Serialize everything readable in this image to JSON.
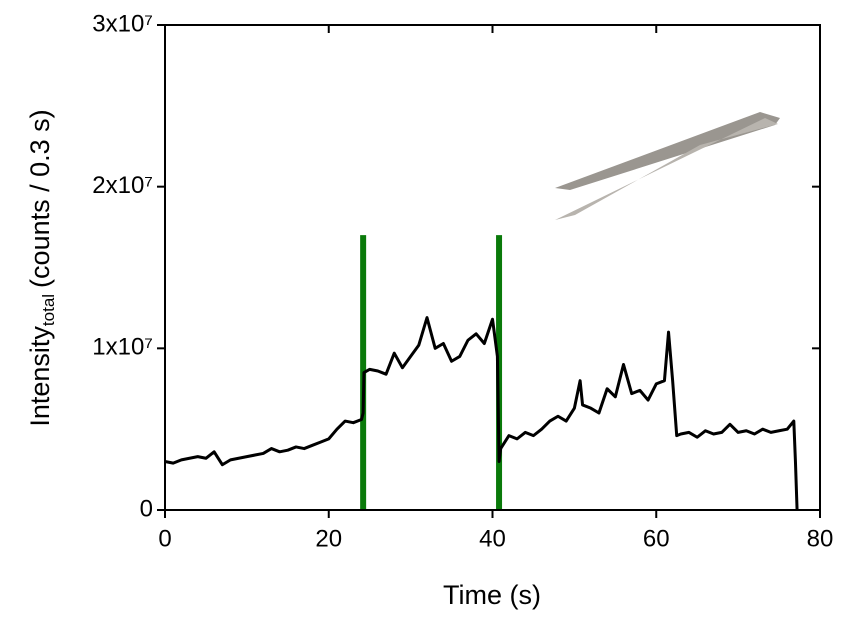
{
  "chart_data": {
    "type": "line",
    "xlabel": "Time (s)",
    "ylabel": {
      "main": "Intensity",
      "sub": "total",
      "rest": "(counts / 0.3 s)"
    },
    "xlim": [
      0,
      80
    ],
    "xticks": [
      0,
      20,
      40,
      60,
      80
    ],
    "ylim": [
      0,
      30000000
    ],
    "yticks": [
      0,
      {
        "value": 10000000,
        "label": "1x10⁷"
      },
      {
        "value": 20000000,
        "label": "2x10⁷"
      },
      {
        "value": 30000000,
        "label": "3x10⁷"
      }
    ],
    "series": [
      {
        "color": "#000000",
        "x": [
          0,
          1,
          2,
          3,
          4,
          5,
          6,
          7,
          8,
          9,
          10,
          11,
          12,
          13,
          14,
          15,
          16,
          17,
          18,
          19,
          20,
          21,
          22,
          23,
          24,
          24.2,
          24.3,
          25,
          26,
          27,
          28,
          29,
          30,
          31,
          32,
          33,
          34,
          35,
          36,
          37,
          38,
          39,
          40,
          40.6,
          40.8,
          41,
          42,
          43,
          44,
          45,
          46,
          47,
          48,
          49,
          50,
          50.7,
          51,
          52,
          53,
          54,
          55,
          56,
          57,
          58,
          59,
          60,
          61,
          61.5,
          62,
          62.5,
          63,
          64,
          65,
          66,
          67,
          68,
          69,
          70,
          71,
          72,
          73,
          74,
          75,
          76,
          76.8,
          77,
          77.2
        ],
        "values": [
          3000000,
          2900000,
          3100000,
          3200000,
          3300000,
          3200000,
          3600000,
          2800000,
          3100000,
          3200000,
          3300000,
          3400000,
          3500000,
          3800000,
          3600000,
          3700000,
          3900000,
          3800000,
          4000000,
          4200000,
          4400000,
          5000000,
          5500000,
          5400000,
          5600000,
          6000000,
          8500000,
          8700000,
          8600000,
          8400000,
          9700000,
          8800000,
          9500000,
          10200000,
          11900000,
          10000000,
          10300000,
          9200000,
          9500000,
          10500000,
          10900000,
          10300000,
          11800000,
          9500000,
          3000000,
          3800000,
          4600000,
          4400000,
          4800000,
          4600000,
          5000000,
          5500000,
          5800000,
          5500000,
          6300000,
          8000000,
          6500000,
          6300000,
          6000000,
          7500000,
          7000000,
          9000000,
          7200000,
          7400000,
          6800000,
          7800000,
          8000000,
          11000000,
          8000000,
          4600000,
          4700000,
          4800000,
          4500000,
          4900000,
          4700000,
          4800000,
          5300000,
          4800000,
          4900000,
          4700000,
          5000000,
          4800000,
          4900000,
          5000000,
          5500000,
          3000000,
          0
        ]
      }
    ],
    "vlines": [
      {
        "x": 24.2,
        "ymax": 17000000,
        "color": "#0a7a0a"
      },
      {
        "x": 40.8,
        "ymax": 17000000,
        "color": "#0a7a0a"
      }
    ]
  }
}
